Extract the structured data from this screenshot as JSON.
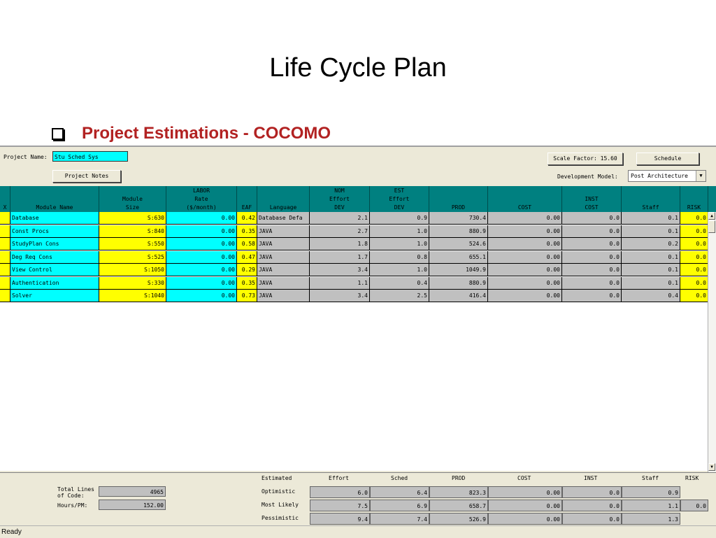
{
  "slide": {
    "title": "Life Cycle Plan",
    "bullet": "Project Estimations - COCOMO"
  },
  "toolbar": {
    "project_name_label": "Project Name:",
    "project_name_value": "Stu Sched Sys",
    "project_notes": "Project Notes",
    "scale_factor": "Scale Factor: 15.60",
    "schedule": "Schedule",
    "dev_model_label": "Development Model:",
    "dev_model_value": "Post Architecture"
  },
  "columns": [
    {
      "l1": "",
      "l2": "",
      "l3": "X"
    },
    {
      "l1": "",
      "l2": "",
      "l3": "Module Name"
    },
    {
      "l1": "",
      "l2": "Module",
      "l3": "Size"
    },
    {
      "l1": "LABOR",
      "l2": "Rate",
      "l3": "($/month)"
    },
    {
      "l1": "",
      "l2": "",
      "l3": "EAF"
    },
    {
      "l1": "",
      "l2": "",
      "l3": "Language"
    },
    {
      "l1": "NOM",
      "l2": "Effort",
      "l3": "DEV"
    },
    {
      "l1": "EST",
      "l2": "Effort",
      "l3": "DEV"
    },
    {
      "l1": "",
      "l2": "",
      "l3": "PROD"
    },
    {
      "l1": "",
      "l2": "",
      "l3": "COST"
    },
    {
      "l1": "",
      "l2": "INST",
      "l3": "COST"
    },
    {
      "l1": "",
      "l2": "",
      "l3": "Staff"
    },
    {
      "l1": "",
      "l2": "",
      "l3": "RISK"
    }
  ],
  "rows": [
    [
      "",
      "Database",
      "S:630",
      "0.00",
      "0.42",
      "Database Defa",
      "2.1",
      "0.9",
      "730.4",
      "0.00",
      "0.0",
      "0.1",
      "0.0"
    ],
    [
      "",
      "Const Procs",
      "S:840",
      "0.00",
      "0.35",
      "JAVA",
      "2.7",
      "1.0",
      "880.9",
      "0.00",
      "0.0",
      "0.1",
      "0.0"
    ],
    [
      "",
      "StudyPlan Cons",
      "S:550",
      "0.00",
      "0.58",
      "JAVA",
      "1.8",
      "1.0",
      "524.6",
      "0.00",
      "0.0",
      "0.2",
      "0.0"
    ],
    [
      "",
      "Deg Req Cons",
      "S:525",
      "0.00",
      "0.47",
      "JAVA",
      "1.7",
      "0.8",
      "655.1",
      "0.00",
      "0.0",
      "0.1",
      "0.0"
    ],
    [
      "",
      "View Control",
      "S:1050",
      "0.00",
      "0.29",
      "JAVA",
      "3.4",
      "1.0",
      "1049.9",
      "0.00",
      "0.0",
      "0.1",
      "0.0"
    ],
    [
      "",
      "Authentication",
      "S:330",
      "0.00",
      "0.35",
      "JAVA",
      "1.1",
      "0.4",
      "880.9",
      "0.00",
      "0.0",
      "0.1",
      "0.0"
    ],
    [
      "",
      "Solver",
      "S:1040",
      "0.00",
      "0.73",
      "JAVA",
      "3.4",
      "2.5",
      "416.4",
      "0.00",
      "0.0",
      "0.4",
      "0.0"
    ]
  ],
  "summary": {
    "total_lines_label_1": "Total Lines",
    "total_lines_label_2": "of Code:",
    "total_lines_value": "4965",
    "hours_label": "Hours/PM:",
    "hours_value": "152.00",
    "headers": [
      "Estimated",
      "Effort",
      "Sched",
      "PROD",
      "COST",
      "INST",
      "Staff",
      "RISK"
    ],
    "rows": [
      {
        "label": "Optimistic",
        "values": [
          "6.0",
          "6.4",
          "823.3",
          "0.00",
          "0.0",
          "0.9"
        ],
        "risk": ""
      },
      {
        "label": "Most Likely",
        "values": [
          "7.5",
          "6.9",
          "658.7",
          "0.00",
          "0.0",
          "1.1"
        ],
        "risk": "0.0"
      },
      {
        "label": "Pessimistic",
        "values": [
          "9.4",
          "7.4",
          "526.9",
          "0.00",
          "0.0",
          "1.3"
        ],
        "risk": ""
      }
    ]
  },
  "status": {
    "text": "Ready"
  }
}
